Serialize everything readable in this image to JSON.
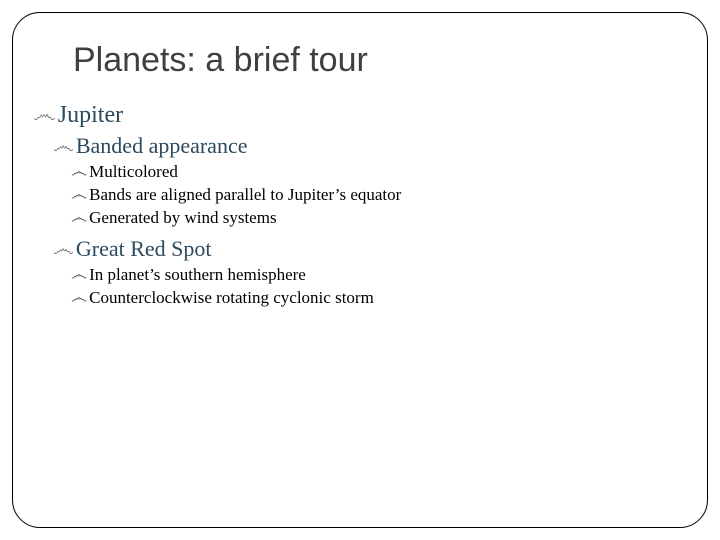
{
  "slide": {
    "title": "Planets: a brief tour",
    "flourish_glyph": "෴",
    "title_color": "#404040",
    "heading_color": "#2c4a5e",
    "body_color": "#000000",
    "flourish_color": "#7a7a7a",
    "title_fontsize": 34,
    "l1_fontsize": 24,
    "l2_fontsize": 22,
    "l3_fontsize": 17,
    "border_radius": 28,
    "border_color": "#000000",
    "outline": {
      "l1": "Jupiter",
      "sections": [
        {
          "l2": "Banded appearance",
          "l3": [
            "Multicolored",
            "Bands are aligned parallel to Jupiter’s equator",
            "Generated by wind systems"
          ]
        },
        {
          "l2": "Great Red Spot",
          "l3": [
            "In planet’s southern hemisphere",
            "Counterclockwise rotating cyclonic storm"
          ]
        }
      ]
    }
  }
}
